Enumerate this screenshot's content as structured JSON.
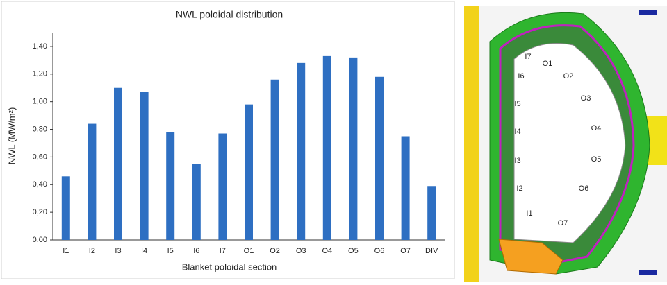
{
  "chart_data": {
    "type": "bar",
    "title": "NWL poloidal distribution",
    "x_label": "Blanket poloidal section",
    "y_label": "NWL (MW/m²)",
    "categories": [
      "I1",
      "I2",
      "I3",
      "I4",
      "I5",
      "I6",
      "I7",
      "O1",
      "O2",
      "O3",
      "O4",
      "O5",
      "O6",
      "O7",
      "DIV"
    ],
    "values": [
      0.46,
      0.84,
      1.1,
      1.07,
      0.78,
      0.55,
      0.77,
      0.98,
      1.16,
      1.28,
      1.33,
      1.32,
      1.18,
      0.75,
      0.39
    ],
    "color": "#2e6fc2",
    "ylim": [
      0,
      1.5
    ],
    "yticks": [
      {
        "value": 0,
        "label": "0,00"
      },
      {
        "value": 0.2,
        "label": "0,20"
      },
      {
        "value": 0.4,
        "label": "0,40"
      },
      {
        "value": 0.6,
        "label": "0,60"
      },
      {
        "value": 0.8,
        "label": "0,80"
      },
      {
        "value": 1.0,
        "label": "1,00"
      },
      {
        "value": 1.2,
        "label": "1,20"
      },
      {
        "value": 1.4,
        "label": "1,40"
      }
    ],
    "grid": false
  },
  "diagram_labels": [
    "I7",
    "O1",
    "O2",
    "O3",
    "O4",
    "O5",
    "O6",
    "O7",
    "I6",
    "I5",
    "I4",
    "I3",
    "I2",
    "I1"
  ]
}
